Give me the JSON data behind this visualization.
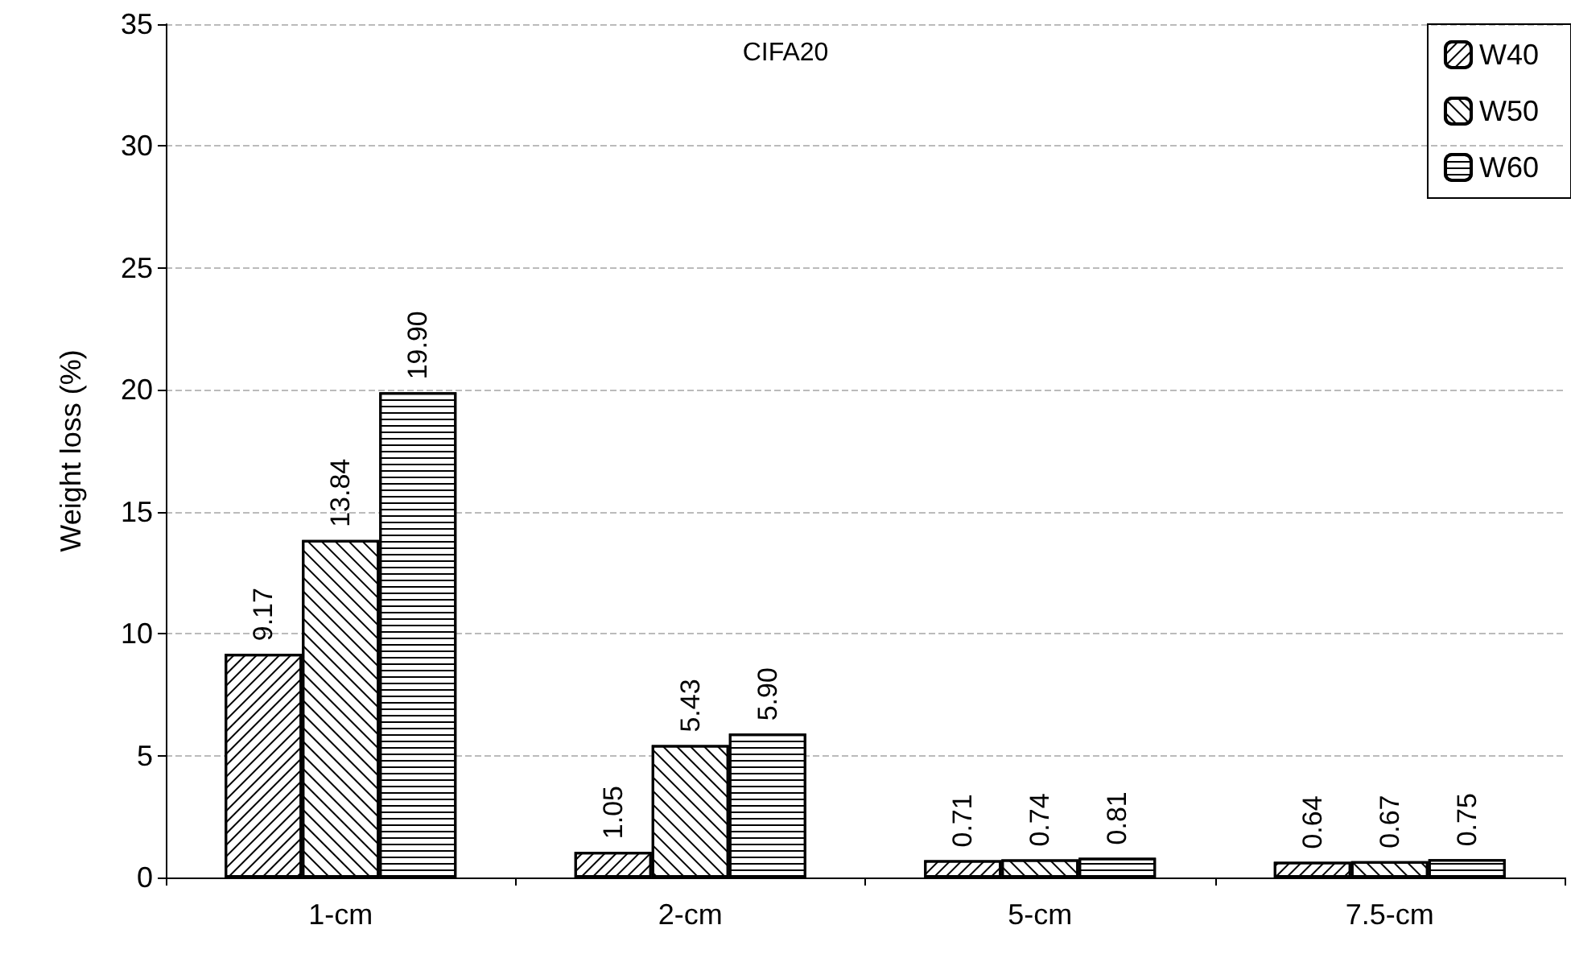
{
  "chart_data": {
    "type": "bar",
    "title": "CIFA20",
    "ylabel": "Weight loss (%)",
    "categories": [
      "1-cm",
      "2-cm",
      "5-cm",
      "7.5-cm"
    ],
    "series": [
      {
        "name": "W40",
        "color": "#ffffff",
        "values": [
          9.17,
          1.05,
          0.71,
          0.64
        ],
        "value_labels": [
          "9.17",
          "1.05",
          "0.71",
          "0.64"
        ]
      },
      {
        "name": "W50",
        "color": "#ffffff",
        "values": [
          13.84,
          5.43,
          0.74,
          0.67
        ],
        "value_labels": [
          "13.84",
          "5.43",
          "0.74",
          "0.67"
        ]
      },
      {
        "name": "W60",
        "color": "#ffffff",
        "values": [
          19.9,
          5.9,
          0.81,
          0.75
        ],
        "value_labels": [
          "19.90",
          "5.90",
          "0.81",
          "0.75"
        ]
      }
    ],
    "ylim": [
      0,
      35
    ],
    "yticks": [
      0,
      5,
      10,
      15,
      20,
      25,
      30,
      35
    ],
    "grid": "y",
    "legend": "top right"
  }
}
